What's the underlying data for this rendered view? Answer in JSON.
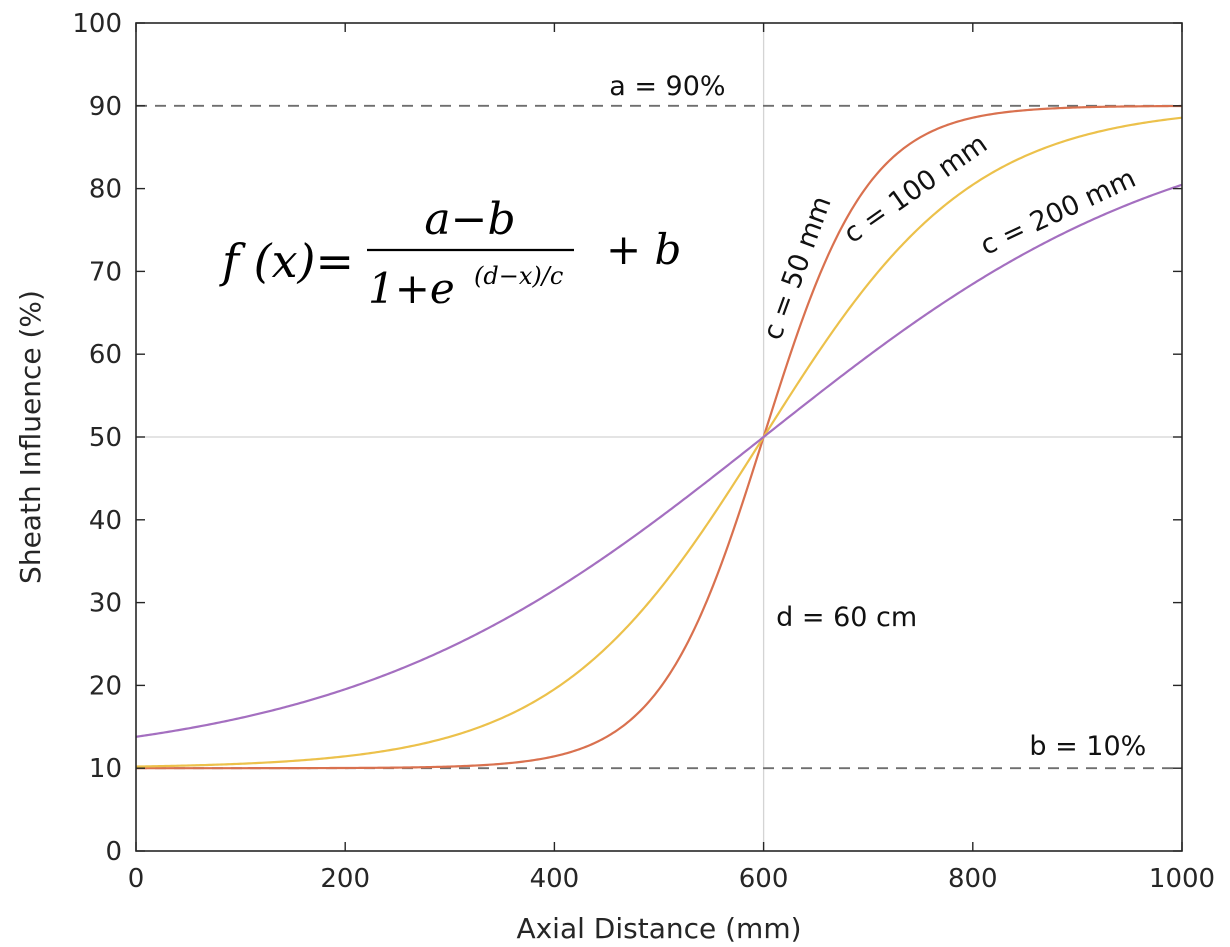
{
  "chart_data": {
    "type": "line",
    "xlabel": "Axial Distance (mm)",
    "ylabel": "Sheath Influence (%)",
    "xlim": [
      0,
      1000
    ],
    "ylim": [
      0,
      100
    ],
    "xticks": [
      0,
      200,
      400,
      600,
      800,
      1000
    ],
    "yticks": [
      0,
      10,
      20,
      30,
      40,
      50,
      60,
      70,
      80,
      90,
      100
    ],
    "grid": false,
    "model": {
      "a": 90,
      "b": 10,
      "d": 600
    },
    "series": [
      {
        "label": "c = 50 mm",
        "c": 50,
        "color": "#d9714f",
        "x": [
          0,
          100,
          200,
          300,
          400,
          450,
          500,
          550,
          600,
          650,
          700,
          750,
          800,
          900,
          1000
        ],
        "y": [
          10.0,
          10.0,
          10.0,
          10.03,
          10.03,
          10.2,
          11.1,
          20.6,
          50.0,
          79.4,
          88.9,
          89.8,
          90.0,
          90.0,
          90.0
        ]
      },
      {
        "label": "c = 100 mm",
        "c": 100,
        "color": "#ecc14b",
        "x": [
          0,
          100,
          200,
          300,
          400,
          500,
          550,
          600,
          650,
          700,
          800,
          900,
          1000
        ],
        "y": [
          10.2,
          10.5,
          11.4,
          13.8,
          19.5,
          31.0,
          40.0,
          50.0,
          60.0,
          69.0,
          80.5,
          86.2,
          88.5
        ]
      },
      {
        "label": "c = 200 mm",
        "c": 200,
        "color": "#a46fc0",
        "x": [
          0,
          100,
          200,
          300,
          400,
          500,
          600,
          700,
          800,
          900,
          1000
        ],
        "y": [
          13.8,
          16.2,
          19.5,
          24.1,
          31.0,
          40.0,
          50.0,
          60.0,
          69.0,
          75.9,
          80.5
        ]
      }
    ],
    "reference_lines": {
      "a_label": "a = 90%",
      "b_label": "b = 10%",
      "d_label": "d = 60 cm"
    },
    "formula": {
      "lhs": "f (x)=",
      "numerator": "a−b",
      "denominator_base": "1+e",
      "exponent": "(d−x)/c",
      "tail": "+  b"
    },
    "colors": {
      "axis": "#262626",
      "dashed": "#6e6e6e",
      "guide": "#d4d4d4"
    }
  }
}
